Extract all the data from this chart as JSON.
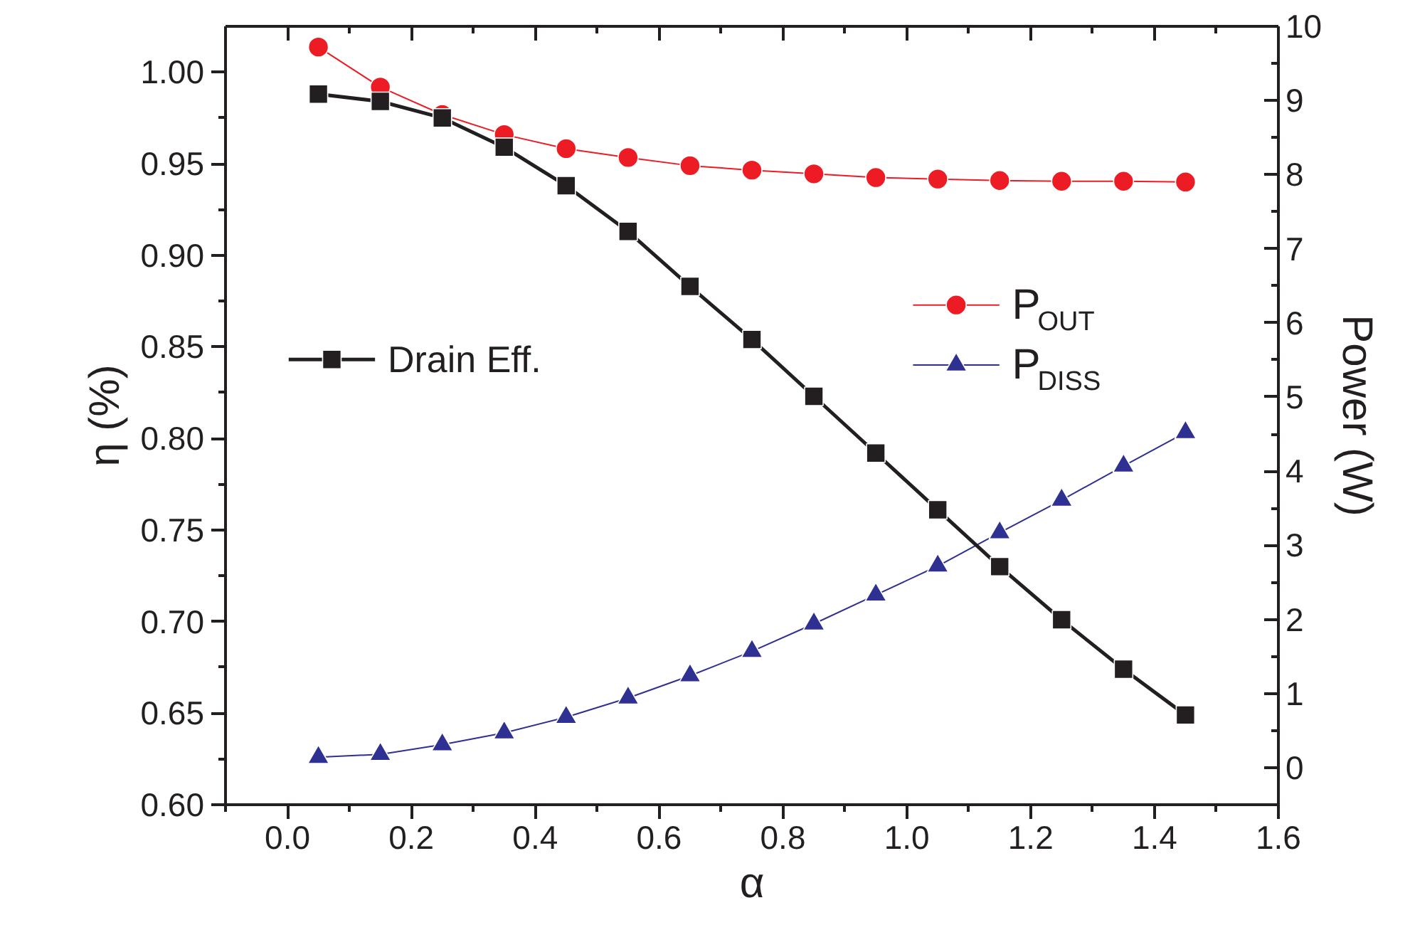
{
  "chart_data": {
    "type": "line",
    "xlabel": "α",
    "ylabel": "η (%)",
    "y2label": "Power (W)",
    "x": [
      0.05,
      0.15,
      0.25,
      0.35,
      0.45,
      0.55,
      0.65,
      0.75,
      0.85,
      0.95,
      1.05,
      1.15,
      1.25,
      1.35,
      1.45
    ],
    "series": [
      {
        "name": "Drain Eff.",
        "color": "#231f20",
        "marker": "square",
        "values": [
          0.988,
          0.984,
          0.975,
          0.959,
          0.938,
          0.913,
          0.883,
          0.854,
          0.823,
          0.792,
          0.761,
          0.73,
          0.701,
          0.674,
          0.649
        ]
      },
      {
        "name": "P$_{OUT}$",
        "color": "#ed1c24",
        "marker": "circle",
        "axis": "y2",
        "values": [
          9.72,
          9.18,
          8.81,
          8.54,
          8.35,
          8.23,
          8.12,
          8.06,
          8.01,
          7.96,
          7.94,
          7.92,
          7.91,
          7.91,
          7.9
        ]
      },
      {
        "name": "P$_{DISS}$",
        "color": "#2e3192",
        "marker": "triangle",
        "axis": "y2",
        "values": [
          0.14,
          0.18,
          0.31,
          0.47,
          0.68,
          0.94,
          1.24,
          1.57,
          1.94,
          2.33,
          2.72,
          3.17,
          3.61,
          4.07,
          4.52
        ]
      }
    ],
    "xlim": [
      -0.1,
      1.6
    ],
    "xticks": [
      {
        "value": -0.1,
        "label": null
      },
      {
        "value": 0.0,
        "label": "0.0"
      },
      {
        "value": 0.1,
        "label": null
      },
      {
        "value": 0.2,
        "label": "0.2"
      },
      {
        "value": 0.3,
        "label": null
      },
      {
        "value": 0.4,
        "label": "0.4"
      },
      {
        "value": 0.5,
        "label": null
      },
      {
        "value": 0.6,
        "label": "0.6"
      },
      {
        "value": 0.7,
        "label": null
      },
      {
        "value": 0.8,
        "label": "0.8"
      },
      {
        "value": 0.9,
        "label": null
      },
      {
        "value": 1.0,
        "label": "1.0"
      },
      {
        "value": 1.1,
        "label": null
      },
      {
        "value": 1.2,
        "label": "1.2"
      },
      {
        "value": 1.3,
        "label": null
      },
      {
        "value": 1.4,
        "label": "1.4"
      },
      {
        "value": 1.5,
        "label": null
      },
      {
        "value": 1.6,
        "label": "1.6"
      }
    ],
    "ylim": [
      0.6,
      1.025
    ],
    "yticks": [
      {
        "value": 0.6,
        "label": "0.60"
      },
      {
        "value": 0.625,
        "label": null
      },
      {
        "value": 0.65,
        "label": "0.65"
      },
      {
        "value": 0.675,
        "label": null
      },
      {
        "value": 0.7,
        "label": "0.70"
      },
      {
        "value": 0.725,
        "label": null
      },
      {
        "value": 0.75,
        "label": "0.75"
      },
      {
        "value": 0.775,
        "label": null
      },
      {
        "value": 0.8,
        "label": "0.80"
      },
      {
        "value": 0.825,
        "label": null
      },
      {
        "value": 0.85,
        "label": "0.85"
      },
      {
        "value": 0.875,
        "label": null
      },
      {
        "value": 0.9,
        "label": "0.90"
      },
      {
        "value": 0.925,
        "label": null
      },
      {
        "value": 0.95,
        "label": "0.95"
      },
      {
        "value": 0.975,
        "label": null
      },
      {
        "value": 1.0,
        "label": "1.00"
      }
    ],
    "y2lim": [
      -0.5,
      10
    ],
    "y2ticks": [
      0,
      {
        "value": 0.5,
        "label": null
      },
      1,
      {
        "value": 1.5,
        "label": null
      },
      2,
      {
        "value": 2.5,
        "label": null
      },
      3,
      {
        "value": 3.5,
        "label": null
      },
      4,
      {
        "value": 4.5,
        "label": null
      },
      5,
      {
        "value": 5.5,
        "label": null
      },
      6,
      {
        "value": 6.5,
        "label": null
      },
      7,
      {
        "value": 7.5,
        "label": null
      },
      8,
      {
        "value": 8.5,
        "label": null
      },
      9,
      {
        "value": 9.5,
        "label": null
      },
      10
    ],
    "grid": false,
    "legend": "center"
  }
}
